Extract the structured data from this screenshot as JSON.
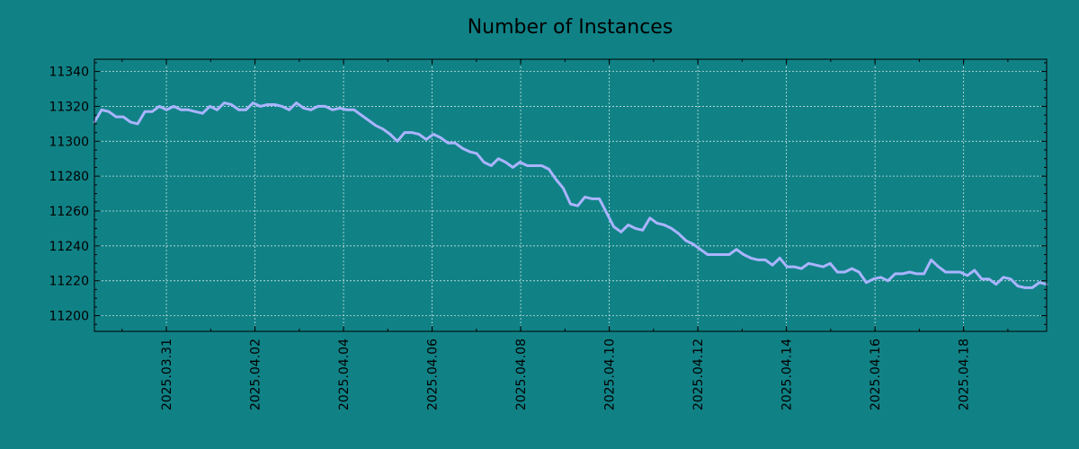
{
  "colors": {
    "background": "#108286",
    "line": "#aab4ff",
    "grid": "#c8e0e0",
    "axis": "#000000"
  },
  "chart_data": {
    "type": "line",
    "title": "Number of Instances",
    "xlabel": "",
    "ylabel": "",
    "grid": true,
    "x_start": "2025.03.29",
    "x_end": "2025.04.19",
    "xlim": [
      "2025.03.29 09:00",
      "2025.04.19 21:00"
    ],
    "ylim": [
      11191,
      11347
    ],
    "y_ticks": [
      11200,
      11220,
      11240,
      11260,
      11280,
      11300,
      11320,
      11340
    ],
    "x_ticks": [
      "2025.03.31",
      "2025.04.02",
      "2025.04.04",
      "2025.04.06",
      "2025.04.08",
      "2025.04.10",
      "2025.04.12",
      "2025.04.14",
      "2025.04.16",
      "2025.04.18"
    ],
    "series": [
      {
        "values": [
          11311,
          11318,
          11317,
          11314,
          11314,
          11311,
          11310,
          11317,
          11317,
          11320,
          11318,
          11320,
          11318,
          11318,
          11317,
          11316,
          11320,
          11318,
          11322,
          11321,
          11318,
          11318,
          11322,
          11320,
          11321,
          11321,
          11320,
          11318,
          11322,
          11319,
          11318,
          11320,
          11320,
          11318,
          11319,
          11318,
          11318,
          11315,
          11312,
          11309,
          11307,
          11304,
          11300,
          11305,
          11305,
          11304,
          11301,
          11304,
          11302,
          11299,
          11299,
          11296,
          11294,
          11293,
          11288,
          11286,
          11290,
          11288,
          11285,
          11288,
          11286,
          11286,
          11286,
          11284,
          11278,
          11273,
          11264,
          11263,
          11268,
          11267,
          11267,
          11259,
          11251,
          11248,
          11252,
          11250,
          11249,
          11256,
          11253,
          11252,
          11250,
          11247,
          11243,
          11241,
          11238,
          11235,
          11235,
          11235,
          11235,
          11238,
          11235,
          11233,
          11232,
          11232,
          11229,
          11233,
          11228,
          11228,
          11227,
          11230,
          11229,
          11228,
          11230,
          11225,
          11225,
          11227,
          11225,
          11219,
          11221,
          11222,
          11220,
          11224,
          11224,
          11225,
          11224,
          11224,
          11232,
          11228,
          11225,
          11225,
          11225,
          11223,
          11226,
          11221,
          11221,
          11218,
          11222,
          11221,
          11217,
          11216,
          11216,
          11219,
          11218
        ]
      }
    ]
  }
}
